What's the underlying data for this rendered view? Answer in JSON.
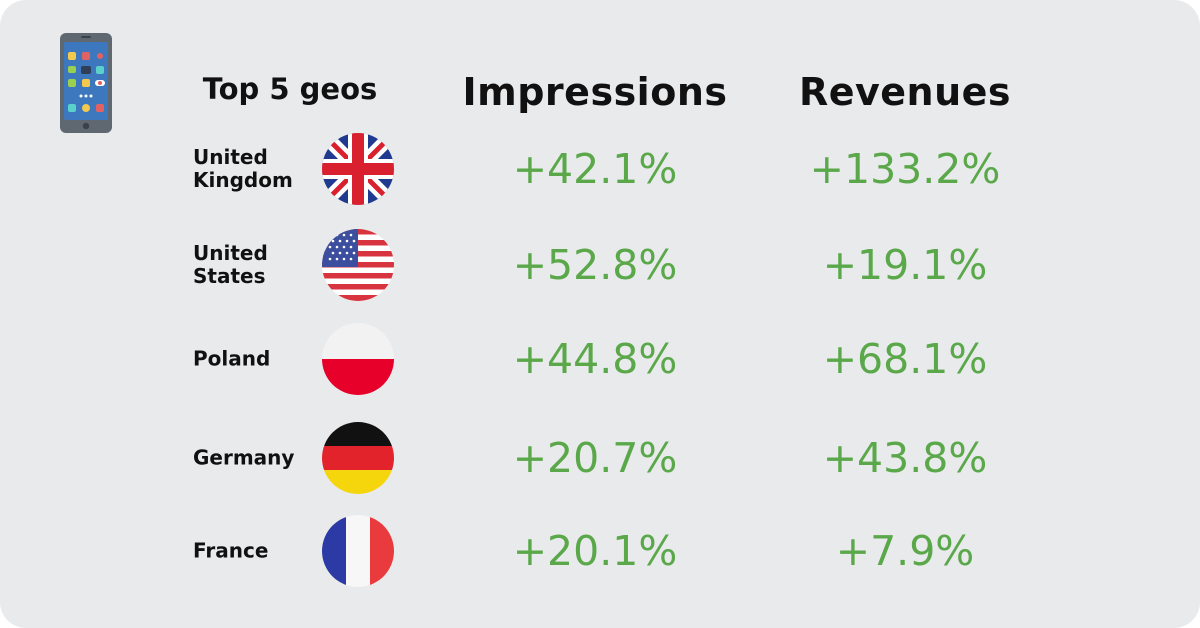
{
  "header": {
    "geos_label": "Top 5 geos",
    "impressions_label": "Impressions",
    "revenues_label": "Revenues"
  },
  "icons": {
    "top_left": "smartphone-icon"
  },
  "colors": {
    "value_green": "#5aa84a",
    "background": "#e9eaec"
  },
  "rows": [
    {
      "country": "United\nKingdom",
      "flag": "uk-flag-icon",
      "impressions": "+42.1%",
      "revenues": "+133.2%"
    },
    {
      "country": "United\nStates",
      "flag": "us-flag-icon",
      "impressions": "+52.8%",
      "revenues": "+19.1%"
    },
    {
      "country": "Poland",
      "flag": "poland-flag-icon",
      "impressions": "+44.8%",
      "revenues": "+68.1%"
    },
    {
      "country": "Germany",
      "flag": "germany-flag-icon",
      "impressions": "+20.7%",
      "revenues": "+43.8%"
    },
    {
      "country": "France",
      "flag": "france-flag-icon",
      "impressions": "+20.1%",
      "revenues": "+7.9%"
    }
  ]
}
